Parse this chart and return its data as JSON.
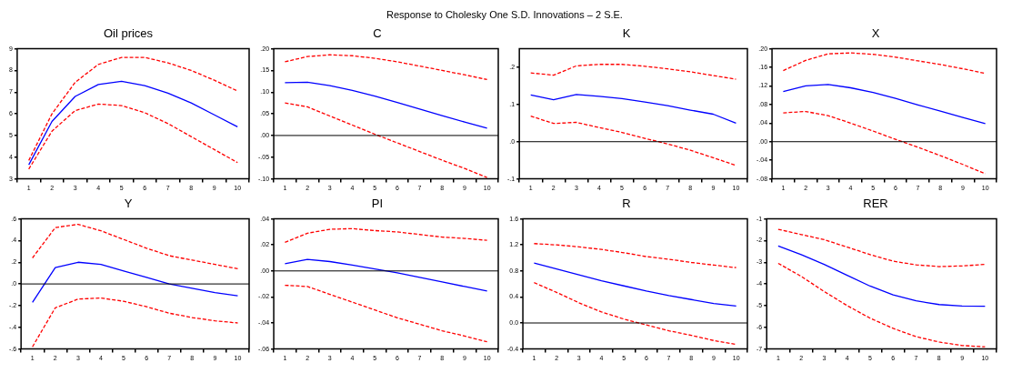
{
  "chart_data": [
    {
      "type": "other",
      "title": "Response to Cholesky One S.D. Innovations – 2 S.E."
    },
    {
      "type": "line",
      "title": "Oil prices",
      "categories": [
        "1",
        "2",
        "3",
        "4",
        "5",
        "6",
        "7",
        "8",
        "9",
        "10"
      ],
      "ylim": [
        3,
        9
      ],
      "yticks": [
        3,
        4,
        5,
        6,
        7,
        8,
        9
      ],
      "marker": "none",
      "series": [
        {
          "color": "#0000ff",
          "line_style": "solid",
          "values": [
            3.65,
            5.65,
            6.8,
            7.35,
            7.5,
            7.3,
            6.95,
            6.5,
            5.95,
            5.4
          ]
        },
        {
          "color": "#ff0000",
          "line_style": "dashed",
          "values": [
            3.85,
            6.0,
            7.45,
            8.28,
            8.6,
            8.6,
            8.35,
            8.0,
            7.55,
            7.05
          ]
        },
        {
          "color": "#ff0000",
          "line_style": "dashed",
          "values": [
            3.45,
            5.2,
            6.15,
            6.45,
            6.38,
            6.05,
            5.55,
            4.95,
            4.35,
            3.75
          ]
        }
      ]
    },
    {
      "type": "line",
      "title": "C",
      "categories": [
        "1",
        "2",
        "3",
        "4",
        "5",
        "6",
        "7",
        "8",
        "9",
        "10"
      ],
      "ylim": [
        -0.1,
        0.2
      ],
      "yticks": [
        {
          "value": -0.1,
          "label": "-.10"
        },
        {
          "value": -0.05,
          "label": "-.05"
        },
        {
          "value": 0,
          "label": ".00"
        },
        {
          "value": 0.05,
          "label": ".05"
        },
        {
          "value": 0.1,
          "label": ".10"
        },
        {
          "value": 0.15,
          "label": ".15"
        },
        {
          "value": 0.2,
          "label": ".20"
        }
      ],
      "marker": "none",
      "ref_lines": [
        {
          "axis": "y",
          "value": 0,
          "color": "#000000"
        }
      ],
      "series": [
        {
          "color": "#0000ff",
          "line_style": "solid",
          "values": [
            0.122,
            0.123,
            0.115,
            0.104,
            0.091,
            0.076,
            0.061,
            0.046,
            0.031,
            0.017
          ]
        },
        {
          "color": "#ff0000",
          "line_style": "dashed",
          "values": [
            0.17,
            0.182,
            0.186,
            0.184,
            0.178,
            0.17,
            0.16,
            0.15,
            0.14,
            0.129
          ]
        },
        {
          "color": "#ff0000",
          "line_style": "dashed",
          "values": [
            0.075,
            0.066,
            0.045,
            0.024,
            0.003,
            -0.017,
            -0.037,
            -0.057,
            -0.076,
            -0.097
          ]
        }
      ]
    },
    {
      "type": "line",
      "title": "K",
      "categories": [
        "1",
        "2",
        "3",
        "4",
        "5",
        "6",
        "7",
        "8",
        "9",
        "10"
      ],
      "ylim": [
        -0.1,
        0.25
      ],
      "yticks": [
        {
          "value": -0.1,
          "label": "-.1"
        },
        {
          "value": 0,
          "label": ".0"
        },
        {
          "value": 0.1,
          "label": ".1"
        },
        {
          "value": 0.2,
          "label": ".2"
        }
      ],
      "marker": "none",
      "ref_lines": [
        {
          "axis": "y",
          "value": 0,
          "color": "#000000"
        }
      ],
      "series": [
        {
          "color": "#0000ff",
          "line_style": "solid",
          "values": [
            0.126,
            0.113,
            0.127,
            0.122,
            0.116,
            0.107,
            0.097,
            0.085,
            0.074,
            0.05
          ]
        },
        {
          "color": "#ff0000",
          "line_style": "dashed",
          "values": [
            0.185,
            0.179,
            0.204,
            0.208,
            0.208,
            0.203,
            0.196,
            0.188,
            0.178,
            0.168
          ]
        },
        {
          "color": "#ff0000",
          "line_style": "dashed",
          "values": [
            0.069,
            0.049,
            0.052,
            0.038,
            0.025,
            0.009,
            -0.006,
            -0.023,
            -0.043,
            -0.064
          ]
        }
      ]
    },
    {
      "type": "line",
      "title": "X",
      "categories": [
        "1",
        "2",
        "3",
        "4",
        "5",
        "6",
        "7",
        "8",
        "9",
        "10"
      ],
      "ylim": [
        -0.08,
        0.2
      ],
      "yticks": [
        {
          "value": -0.08,
          "label": "-.08"
        },
        {
          "value": -0.04,
          "label": "-.04"
        },
        {
          "value": 0,
          "label": ".00"
        },
        {
          "value": 0.04,
          "label": ".04"
        },
        {
          "value": 0.08,
          "label": ".08"
        },
        {
          "value": 0.12,
          "label": ".12"
        },
        {
          "value": 0.16,
          "label": ".16"
        },
        {
          "value": 0.2,
          "label": ".20"
        }
      ],
      "marker": "none",
      "ref_lines": [
        {
          "axis": "y",
          "value": 0,
          "color": "#000000"
        }
      ],
      "series": [
        {
          "color": "#0000ff",
          "line_style": "solid",
          "values": [
            0.108,
            0.12,
            0.123,
            0.116,
            0.106,
            0.093,
            0.079,
            0.066,
            0.052,
            0.039
          ]
        },
        {
          "color": "#ff0000",
          "line_style": "dashed",
          "values": [
            0.153,
            0.175,
            0.189,
            0.191,
            0.188,
            0.182,
            0.174,
            0.166,
            0.157,
            0.147
          ]
        },
        {
          "color": "#ff0000",
          "line_style": "dashed",
          "values": [
            0.062,
            0.065,
            0.056,
            0.04,
            0.023,
            0.005,
            -0.012,
            -0.03,
            -0.049,
            -0.069
          ]
        }
      ]
    },
    {
      "type": "line",
      "title": "Y",
      "categories": [
        "1",
        "2",
        "3",
        "4",
        "5",
        "6",
        "7",
        "8",
        "9",
        "10"
      ],
      "ylim": [
        -0.6,
        0.6
      ],
      "yticks": [
        {
          "value": -0.6,
          "label": "-.6"
        },
        {
          "value": -0.4,
          "label": "-.4"
        },
        {
          "value": -0.2,
          "label": "-.2"
        },
        {
          "value": 0,
          "label": ".0"
        },
        {
          "value": 0.2,
          "label": ".2"
        },
        {
          "value": 0.4,
          "label": ".4"
        },
        {
          "value": 0.6,
          "label": ".6"
        }
      ],
      "marker": "none",
      "ref_lines": [
        {
          "axis": "y",
          "value": 0,
          "color": "#000000"
        }
      ],
      "series": [
        {
          "color": "#0000ff",
          "line_style": "solid",
          "values": [
            -0.17,
            0.15,
            0.2,
            0.18,
            0.12,
            0.06,
            0.0,
            -0.04,
            -0.08,
            -0.11
          ]
        },
        {
          "color": "#ff0000",
          "line_style": "dashed",
          "values": [
            0.24,
            0.52,
            0.55,
            0.49,
            0.41,
            0.33,
            0.26,
            0.22,
            0.18,
            0.14
          ]
        },
        {
          "color": "#ff0000",
          "line_style": "dashed",
          "values": [
            -0.58,
            -0.22,
            -0.14,
            -0.13,
            -0.16,
            -0.21,
            -0.27,
            -0.31,
            -0.34,
            -0.36
          ]
        }
      ]
    },
    {
      "type": "line",
      "title": "PI",
      "categories": [
        "1",
        "2",
        "3",
        "4",
        "5",
        "6",
        "7",
        "8",
        "9",
        "10"
      ],
      "ylim": [
        -0.06,
        0.04
      ],
      "yticks": [
        {
          "value": -0.06,
          "label": "-.06"
        },
        {
          "value": -0.04,
          "label": "-.04"
        },
        {
          "value": -0.02,
          "label": "-.02"
        },
        {
          "value": 0,
          "label": ".00"
        },
        {
          "value": 0.02,
          "label": ".02"
        },
        {
          "value": 0.04,
          "label": ".04"
        }
      ],
      "marker": "none",
      "ref_lines": [
        {
          "axis": "y",
          "value": 0,
          "color": "#000000"
        }
      ],
      "series": [
        {
          "color": "#0000ff",
          "line_style": "solid",
          "values": [
            0.0055,
            0.0088,
            0.0072,
            0.0045,
            0.0015,
            -0.0015,
            -0.005,
            -0.0085,
            -0.012,
            -0.0155
          ]
        },
        {
          "color": "#ff0000",
          "line_style": "dashed",
          "values": [
            0.022,
            0.029,
            0.032,
            0.0325,
            0.031,
            0.03,
            0.028,
            0.026,
            0.025,
            0.0235
          ]
        },
        {
          "color": "#ff0000",
          "line_style": "dashed",
          "values": [
            -0.011,
            -0.012,
            -0.018,
            -0.024,
            -0.03,
            -0.036,
            -0.041,
            -0.046,
            -0.05,
            -0.0545
          ]
        }
      ]
    },
    {
      "type": "line",
      "title": "R",
      "categories": [
        "1",
        "2",
        "3",
        "4",
        "5",
        "6",
        "7",
        "8",
        "9",
        "10"
      ],
      "ylim": [
        -0.4,
        1.6
      ],
      "yticks": [
        -0.4,
        {
          "value": 0,
          "label": "0.0"
        },
        0.4,
        0.8,
        1.2,
        1.6
      ],
      "marker": "none",
      "ref_lines": [
        {
          "axis": "y",
          "value": 0,
          "color": "#000000"
        }
      ],
      "series": [
        {
          "color": "#0000ff",
          "line_style": "solid",
          "values": [
            0.92,
            0.83,
            0.74,
            0.65,
            0.57,
            0.49,
            0.42,
            0.36,
            0.3,
            0.26
          ]
        },
        {
          "color": "#ff0000",
          "line_style": "dashed",
          "values": [
            1.22,
            1.2,
            1.17,
            1.13,
            1.08,
            1.02,
            0.98,
            0.93,
            0.89,
            0.85
          ]
        },
        {
          "color": "#ff0000",
          "line_style": "dashed",
          "values": [
            0.62,
            0.47,
            0.31,
            0.17,
            0.06,
            -0.03,
            -0.12,
            -0.19,
            -0.27,
            -0.33
          ]
        }
      ]
    },
    {
      "type": "line",
      "title": "RER",
      "categories": [
        "1",
        "2",
        "3",
        "4",
        "5",
        "6",
        "7",
        "8",
        "9",
        "10"
      ],
      "ylim": [
        -7,
        -1
      ],
      "yticks": [
        -7,
        -6,
        -5,
        -4,
        -3,
        -2,
        -1
      ],
      "marker": "none",
      "series": [
        {
          "color": "#0000ff",
          "line_style": "solid",
          "values": [
            -2.25,
            -2.65,
            -3.1,
            -3.6,
            -4.1,
            -4.5,
            -4.78,
            -4.95,
            -5.02,
            -5.03
          ]
        },
        {
          "color": "#ff0000",
          "line_style": "dashed",
          "values": [
            -1.48,
            -1.72,
            -1.96,
            -2.3,
            -2.65,
            -2.95,
            -3.12,
            -3.2,
            -3.17,
            -3.1
          ]
        },
        {
          "color": "#ff0000",
          "line_style": "dashed",
          "values": [
            -3.05,
            -3.65,
            -4.35,
            -5.0,
            -5.58,
            -6.05,
            -6.43,
            -6.68,
            -6.84,
            -6.9
          ]
        }
      ]
    }
  ]
}
